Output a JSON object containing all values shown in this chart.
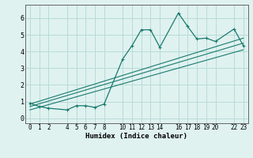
{
  "title": "",
  "xlabel": "Humidex (Indice chaleur)",
  "ylabel": "",
  "bg_color": "#dff2f0",
  "grid_color": "#b8dbd8",
  "line_color": "#1a7a6e",
  "xlim": [
    -0.5,
    23.5
  ],
  "ylim": [
    -0.3,
    6.8
  ],
  "xticks": [
    0,
    1,
    2,
    4,
    5,
    6,
    7,
    8,
    10,
    11,
    12,
    13,
    14,
    16,
    17,
    18,
    19,
    20,
    22,
    23
  ],
  "yticks": [
    0,
    1,
    2,
    3,
    4,
    5,
    6
  ],
  "curve1_x": [
    0,
    1,
    2,
    4,
    5,
    6,
    7,
    8,
    10,
    11,
    12,
    13,
    14,
    16,
    17,
    18,
    19,
    20,
    22,
    23
  ],
  "curve1_y": [
    0.9,
    0.7,
    0.6,
    0.5,
    0.75,
    0.75,
    0.65,
    0.85,
    3.55,
    4.35,
    5.3,
    5.3,
    4.25,
    6.3,
    5.5,
    4.75,
    4.8,
    4.6,
    5.35,
    4.35
  ],
  "line1_x": [
    0,
    23
  ],
  "line1_y": [
    0.85,
    4.8
  ],
  "line2_x": [
    0,
    23
  ],
  "line2_y": [
    0.7,
    4.5
  ],
  "line3_x": [
    0,
    23
  ],
  "line3_y": [
    0.5,
    4.1
  ],
  "tick_fontsize": 5.5,
  "xlabel_fontsize": 6.5
}
